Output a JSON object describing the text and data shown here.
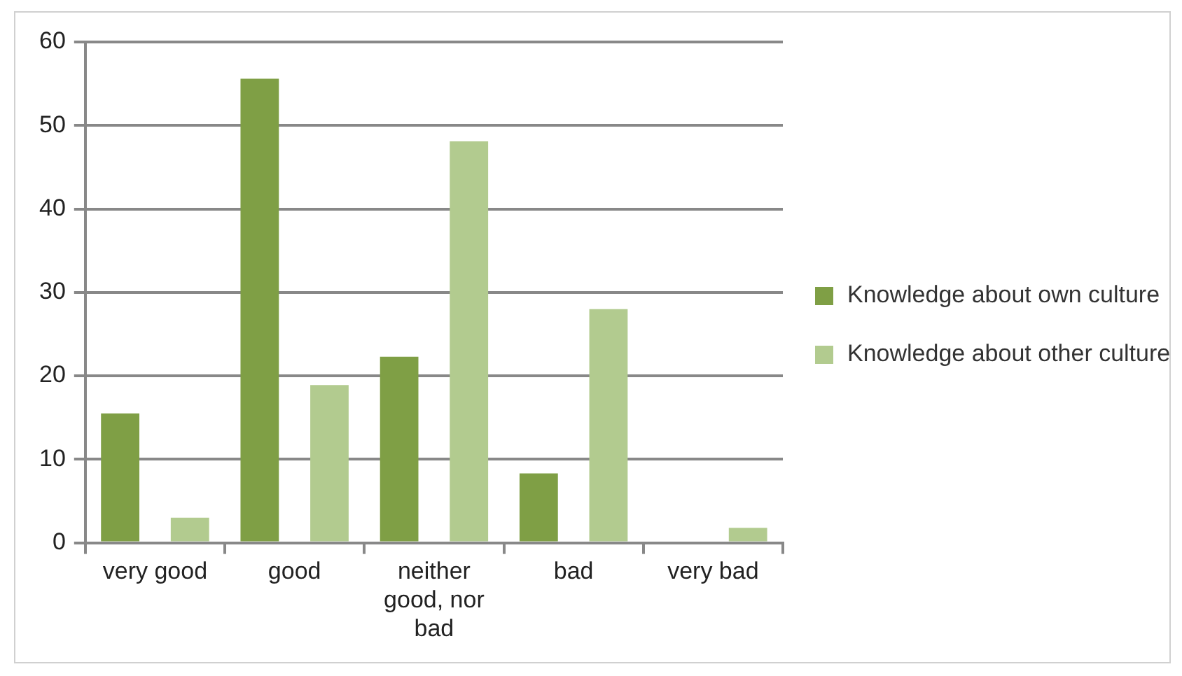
{
  "chart_data": {
    "type": "bar",
    "categories": [
      "very good",
      "good",
      "neither good, nor bad",
      "bad",
      "very bad"
    ],
    "series": [
      {
        "name": "Knowledge about own culture",
        "color": "#7f9f45",
        "values": [
          15.5,
          55.6,
          22.3,
          8.3,
          null
        ]
      },
      {
        "name": "Knowledge about other culture",
        "color": "#b2cb8f",
        "values": [
          3,
          18.9,
          48.1,
          28,
          1.8
        ]
      }
    ],
    "ylim": [
      0,
      60
    ],
    "yticks": [
      0,
      10,
      20,
      30,
      40,
      50,
      60
    ],
    "grid": "y",
    "legend": "right"
  }
}
